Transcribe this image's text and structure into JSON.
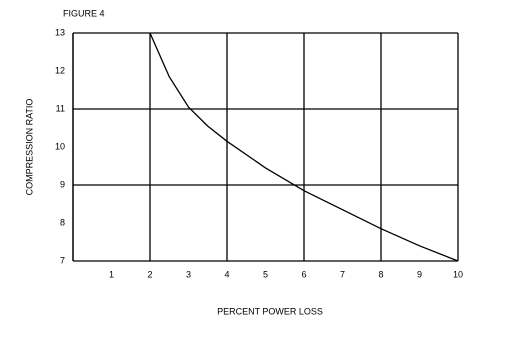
{
  "chart_data": {
    "type": "line",
    "title": "FIGURE 4",
    "xlabel": "PERCENT POWER LOSS",
    "ylabel": "COMPRESSION RATIO",
    "x": [
      2,
      2.5,
      3,
      3.5,
      4,
      5,
      6,
      7,
      8,
      9,
      10
    ],
    "values": [
      13,
      11.85,
      11.05,
      10.55,
      10.15,
      9.45,
      8.85,
      8.35,
      7.85,
      7.4,
      7
    ],
    "color": "#000000",
    "xlim": [
      0,
      10
    ],
    "ylim": [
      7,
      13
    ],
    "xticks": [
      1,
      2,
      3,
      4,
      5,
      6,
      7,
      8,
      9,
      10
    ],
    "yticks": [
      7,
      8,
      9,
      10,
      11,
      12,
      13
    ],
    "xgrid": [
      2,
      4,
      6,
      8,
      10
    ],
    "ygrid": [
      7,
      9,
      11,
      13
    ]
  }
}
